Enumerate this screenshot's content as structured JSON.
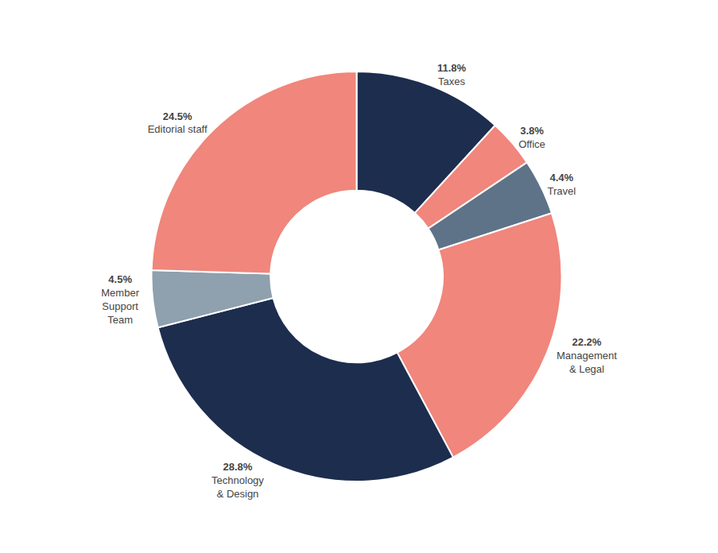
{
  "chart_data": {
    "type": "pie",
    "categories": [
      "Taxes",
      "Office",
      "Travel",
      "Management\n& Legal",
      "Technology\n& Design",
      "Member\nSupport\nTeam",
      "Editorial staff"
    ],
    "values": [
      11.8,
      3.8,
      4.4,
      22.2,
      28.8,
      4.5,
      24.5
    ],
    "value_labels": [
      "11.8%",
      "3.8%",
      "4.4%",
      "22.2%",
      "28.8%",
      "4.5%",
      "24.5%"
    ],
    "colors": [
      "#1D2D4E",
      "#F0867C",
      "#5E7388",
      "#F0867C",
      "#1D2D4E",
      "#8FA0AE",
      "#F0867C"
    ],
    "data_labels": true
  }
}
